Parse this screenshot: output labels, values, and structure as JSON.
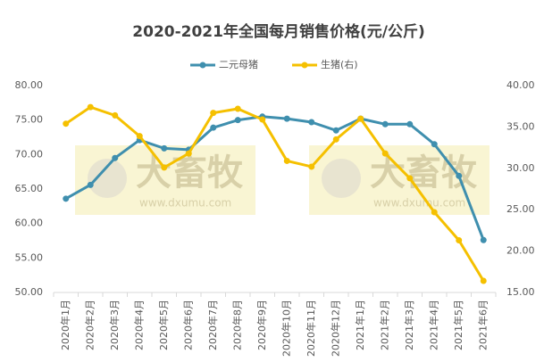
{
  "chart_data": {
    "type": "line",
    "title": "2020-2021年全国每月销售价格(元/公斤)",
    "categories": [
      "2020年1月",
      "2020年2月",
      "2020年3月",
      "2020年4月",
      "2020年5月",
      "2020年6月",
      "2020年7月",
      "2020年8月",
      "2020年9月",
      "2020年10月",
      "2020年11月",
      "2020年12月",
      "2021年1月",
      "2021年2月",
      "2021年3月",
      "2021年4月",
      "2021年5月",
      "2021年6月"
    ],
    "series": [
      {
        "name": "二元母猪",
        "color": "#3f8fae",
        "values": [
          63.6,
          65.6,
          69.5,
          72.1,
          70.9,
          70.7,
          73.9,
          75.0,
          75.5,
          75.2,
          74.7,
          73.5,
          75.2,
          74.4,
          74.4,
          71.5,
          66.9,
          57.6
        ]
      },
      {
        "name": "生猪(右)",
        "color": "#f5c000",
        "axis": "y2",
        "values": [
          35.4,
          37.4,
          36.4,
          33.9,
          30.1,
          31.8,
          36.7,
          37.2,
          35.9,
          30.9,
          30.2,
          33.5,
          36.0,
          31.8,
          28.8,
          24.7,
          21.3,
          16.4
        ]
      }
    ],
    "ylim": [
      50,
      80
    ],
    "yticks": [
      {
        "value": 50,
        "label": "50.00"
      },
      {
        "value": 55,
        "label": "55.00"
      },
      {
        "value": 60,
        "label": "60.00"
      },
      {
        "value": 65,
        "label": "65.00"
      },
      {
        "value": 70,
        "label": "70.00"
      },
      {
        "value": 75,
        "label": "75.00"
      },
      {
        "value": 80,
        "label": "80.00"
      }
    ],
    "y2lim": [
      15,
      40
    ],
    "y2ticks": [
      {
        "value": 15,
        "label": "15.00"
      },
      {
        "value": 20,
        "label": "20.00"
      },
      {
        "value": 25,
        "label": "25.00"
      },
      {
        "value": 30,
        "label": "30.00"
      },
      {
        "value": 35,
        "label": "35.00"
      },
      {
        "value": 40,
        "label": "40.00"
      }
    ],
    "grid": false,
    "legend": "top",
    "watermark": [
      "大畜牧",
      "www.dxumu.com"
    ]
  }
}
